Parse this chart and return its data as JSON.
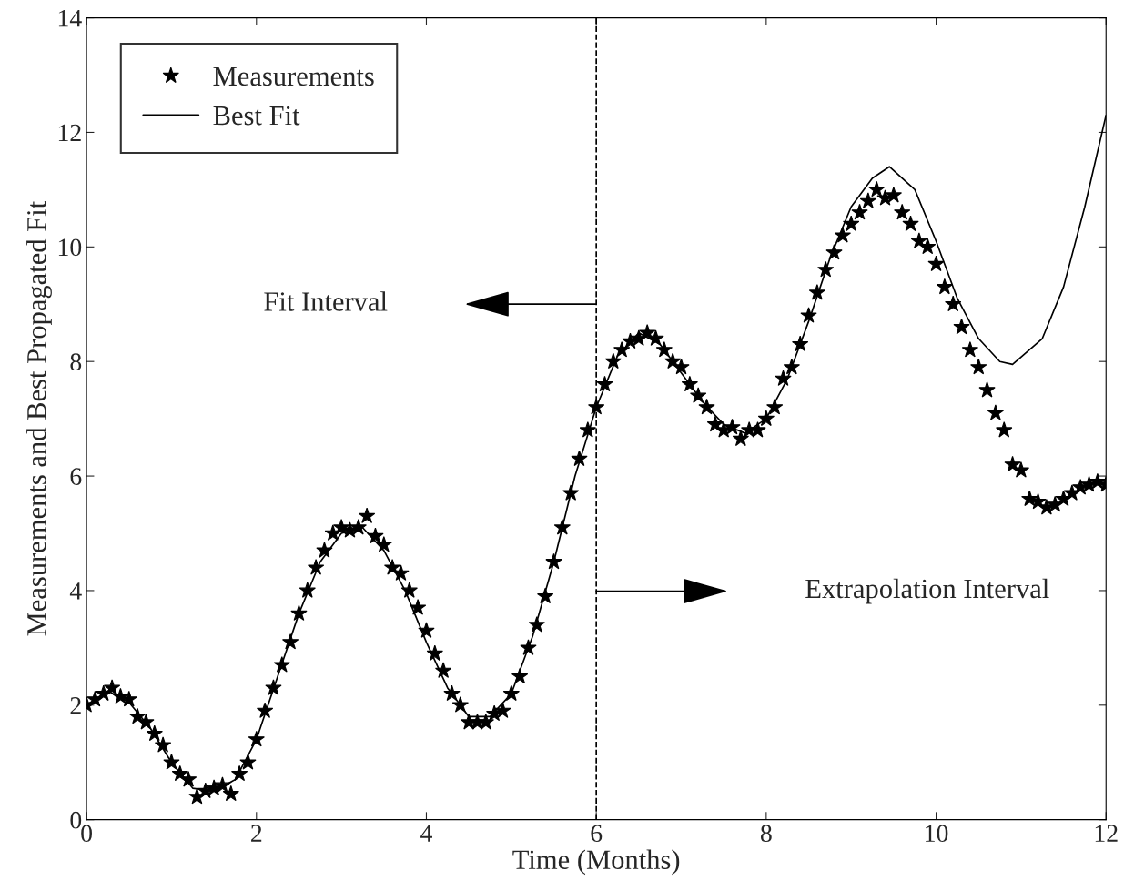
{
  "chart_data": {
    "type": "line",
    "xlabel": "Time (Months)",
    "ylabel": "Measurements and Best Propagated Fit",
    "xlim": [
      0,
      12
    ],
    "ylim": [
      0,
      14
    ],
    "xticks": [
      0,
      2,
      4,
      6,
      8,
      10,
      12
    ],
    "yticks": [
      0,
      2,
      4,
      6,
      8,
      10,
      12,
      14
    ],
    "grid": false,
    "legend": "top left",
    "series": [
      {
        "name": "Measurements",
        "type": "scatter",
        "marker": "star",
        "color": "#000000",
        "x": [
          0.0,
          0.1,
          0.2,
          0.3,
          0.4,
          0.5,
          0.6,
          0.7,
          0.8,
          0.9,
          1.0,
          1.1,
          1.2,
          1.3,
          1.4,
          1.5,
          1.6,
          1.7,
          1.8,
          1.9,
          2.0,
          2.1,
          2.2,
          2.3,
          2.4,
          2.5,
          2.6,
          2.7,
          2.8,
          2.9,
          3.0,
          3.1,
          3.2,
          3.3,
          3.4,
          3.5,
          3.6,
          3.7,
          3.8,
          3.9,
          4.0,
          4.1,
          4.2,
          4.3,
          4.4,
          4.5,
          4.6,
          4.7,
          4.8,
          4.9,
          5.0,
          5.1,
          5.2,
          5.3,
          5.4,
          5.5,
          5.6,
          5.7,
          5.8,
          5.9,
          6.0,
          6.1,
          6.2,
          6.3,
          6.4,
          6.5,
          6.6,
          6.7,
          6.8,
          6.9,
          7.0,
          7.1,
          7.2,
          7.3,
          7.4,
          7.5,
          7.6,
          7.7,
          7.8,
          7.9,
          8.0,
          8.1,
          8.2,
          8.3,
          8.4,
          8.5,
          8.6,
          8.7,
          8.8,
          8.9,
          9.0,
          9.1,
          9.2,
          9.3,
          9.4,
          9.5,
          9.6,
          9.7,
          9.8,
          9.9,
          10.0,
          10.1,
          10.2,
          10.3,
          10.4,
          10.5,
          10.6,
          10.7,
          10.8,
          10.9,
          11.0,
          11.1,
          11.2,
          11.3,
          11.4,
          11.5,
          11.6,
          11.7,
          11.8,
          11.9,
          12.0
        ],
        "values": [
          2.0,
          2.1,
          2.2,
          2.3,
          2.15,
          2.1,
          1.8,
          1.7,
          1.5,
          1.3,
          1.0,
          0.8,
          0.7,
          0.4,
          0.5,
          0.55,
          0.6,
          0.45,
          0.8,
          1.0,
          1.4,
          1.9,
          2.3,
          2.7,
          3.1,
          3.6,
          4.0,
          4.4,
          4.7,
          5.0,
          5.1,
          5.05,
          5.1,
          5.3,
          4.95,
          4.8,
          4.4,
          4.3,
          4.0,
          3.7,
          3.3,
          2.9,
          2.6,
          2.2,
          2.0,
          1.7,
          1.7,
          1.7,
          1.85,
          1.9,
          2.2,
          2.5,
          3.0,
          3.4,
          3.9,
          4.5,
          5.1,
          5.7,
          6.3,
          6.8,
          7.2,
          7.6,
          8.0,
          8.2,
          8.35,
          8.4,
          8.5,
          8.4,
          8.2,
          8.0,
          7.9,
          7.6,
          7.4,
          7.2,
          6.9,
          6.8,
          6.85,
          6.65,
          6.8,
          6.8,
          7.0,
          7.2,
          7.7,
          7.9,
          8.3,
          8.8,
          9.2,
          9.6,
          9.9,
          10.2,
          10.4,
          10.6,
          10.8,
          11.0,
          10.85,
          10.9,
          10.6,
          10.4,
          10.1,
          10.0,
          9.7,
          9.3,
          9.0,
          8.6,
          8.2,
          7.9,
          7.5,
          7.1,
          6.8,
          6.2,
          6.1,
          5.6,
          5.55,
          5.45,
          5.5,
          5.6,
          5.7,
          5.8,
          5.85,
          5.9,
          5.85
        ]
      },
      {
        "name": "Best Fit",
        "line_style": "solid",
        "color": "#000000",
        "x": [
          0,
          0.25,
          0.5,
          0.75,
          1.0,
          1.25,
          1.5,
          1.75,
          2.0,
          2.25,
          2.5,
          2.75,
          3.0,
          3.25,
          3.5,
          3.75,
          4.0,
          4.25,
          4.5,
          4.75,
          5.0,
          5.25,
          5.5,
          5.75,
          6.0,
          6.25,
          6.5,
          6.75,
          7.0,
          7.25,
          7.5,
          7.75,
          8.0,
          8.25,
          8.5,
          8.75,
          9.0,
          9.25,
          9.45,
          9.75,
          10.0,
          10.25,
          10.5,
          10.75,
          10.9,
          11.25,
          11.5,
          11.75,
          12.0
        ],
        "values": [
          2.0,
          2.25,
          2.05,
          1.6,
          1.0,
          0.55,
          0.5,
          0.7,
          1.4,
          2.5,
          3.6,
          4.5,
          5.0,
          5.1,
          4.7,
          4.0,
          3.1,
          2.3,
          1.8,
          1.8,
          2.2,
          3.2,
          4.5,
          6.0,
          7.2,
          8.1,
          8.5,
          8.3,
          7.8,
          7.3,
          6.9,
          6.75,
          7.0,
          7.7,
          8.7,
          9.8,
          10.7,
          11.2,
          11.4,
          11.0,
          10.1,
          9.1,
          8.4,
          8.0,
          7.95,
          8.4,
          9.3,
          10.7,
          12.3
        ]
      }
    ],
    "ref_lines": [
      {
        "axis": "x",
        "value": 6,
        "line_style": "dashed",
        "color": "#000000"
      }
    ],
    "annotations": [
      "Fit Interval",
      "Extrapolation Interval"
    ]
  }
}
